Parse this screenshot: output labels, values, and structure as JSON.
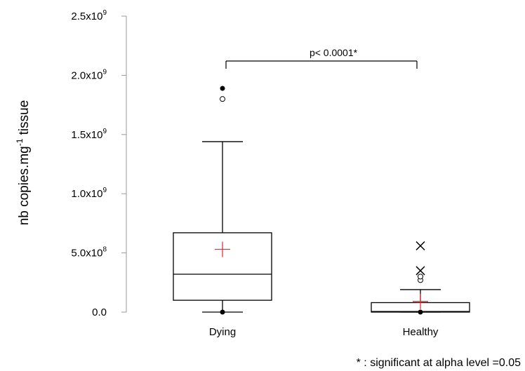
{
  "chart_data": {
    "type": "box",
    "ylabel_main": "nb copies.mg",
    "ylabel_sup": "-1",
    "ylabel_tail": " tissue",
    "ylim": [
      0,
      2500000000
    ],
    "yticks": [
      {
        "value": 0,
        "base": "0.0",
        "exp": ""
      },
      {
        "value": 500000000,
        "base": "5.0x10",
        "exp": "8"
      },
      {
        "value": 1000000000,
        "base": "1.0x10",
        "exp": "9"
      },
      {
        "value": 1500000000,
        "base": "1.5x10",
        "exp": "9"
      },
      {
        "value": 2000000000,
        "base": "2.0x10",
        "exp": "9"
      },
      {
        "value": 2500000000,
        "base": "2.5x10",
        "exp": "9"
      }
    ],
    "categories": [
      "Dying",
      "Healthy"
    ],
    "boxes": [
      {
        "name": "Dying",
        "min": 0,
        "q1": 100000000,
        "median": 320000000,
        "q3": 670000000,
        "whisker_high": 1440000000,
        "mean": 530000000,
        "max": 1890000000,
        "outliers_open": [
          1800000000
        ],
        "outliers_star": []
      },
      {
        "name": "Healthy",
        "min": 0,
        "q1": 0,
        "median": 5000000,
        "q3": 80000000,
        "whisker_high": 190000000,
        "mean": 90000000,
        "max": 560000000,
        "outliers_open": [
          270000000,
          300000000
        ],
        "outliers_star": [
          560000000,
          350000000
        ]
      }
    ],
    "significance": {
      "label": "p< 0.0001*",
      "between": [
        "Dying",
        "Healthy"
      ]
    },
    "footnote": "* : significant at alpha level =0.05",
    "colors": {
      "box": "#000000",
      "mean": "#e8313a",
      "axis": "#999999"
    }
  }
}
